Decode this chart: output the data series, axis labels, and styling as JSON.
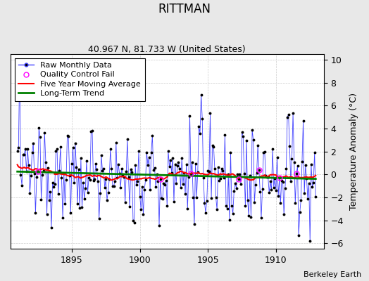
{
  "title": "RITTMAN",
  "subtitle": "40.967 N, 81.733 W (United States)",
  "ylabel": "Temperature Anomaly (°C)",
  "credit": "Berkeley Earth",
  "xlim": [
    1890.5,
    1913.5
  ],
  "ylim": [
    -6.5,
    10.5
  ],
  "yticks": [
    -6,
    -4,
    -2,
    0,
    2,
    4,
    6,
    8,
    10
  ],
  "xticks": [
    1895,
    1900,
    1905,
    1910
  ],
  "raw_line_color": "#4444ff",
  "raw_marker_color": "black",
  "qc_fail_color": "magenta",
  "moving_avg_color": "red",
  "trend_color": "green",
  "bg_color": "#e8e8e8",
  "plot_bg_color": "white",
  "grid_color": "#cccccc",
  "legend_items": [
    "Raw Monthly Data",
    "Quality Control Fail",
    "Five Year Moving Average",
    "Long-Term Trend"
  ],
  "title_fontsize": 12,
  "subtitle_fontsize": 9,
  "legend_fontsize": 8,
  "tick_fontsize": 9,
  "ylabel_fontsize": 9
}
